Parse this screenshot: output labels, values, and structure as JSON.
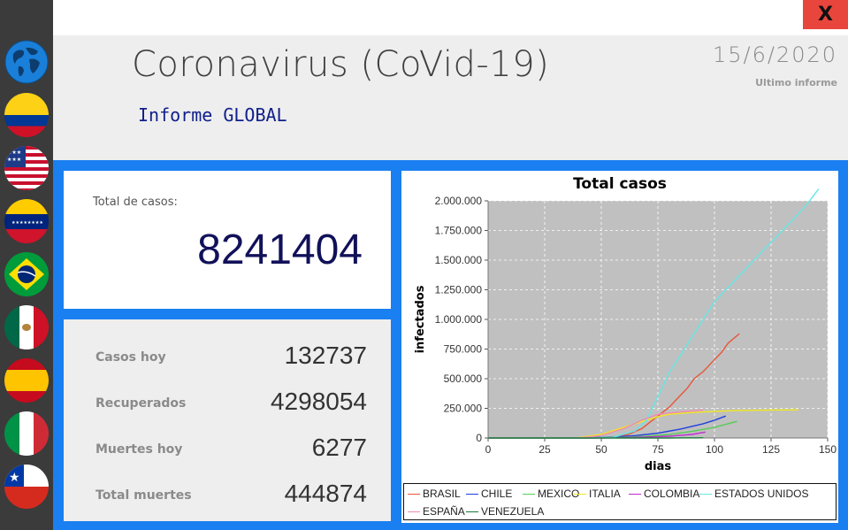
{
  "app": {
    "close_label": "X"
  },
  "sidebar": {
    "items": [
      {
        "name": "globe",
        "label": "Global"
      },
      {
        "name": "colombia"
      },
      {
        "name": "estados-unidos"
      },
      {
        "name": "venezuela"
      },
      {
        "name": "brasil"
      },
      {
        "name": "mexico"
      },
      {
        "name": "espana"
      },
      {
        "name": "italia"
      },
      {
        "name": "chile"
      }
    ]
  },
  "header": {
    "title": "Coronavirus (CoVid-19)",
    "subtitle": "Informe GLOBAL",
    "date": "15/6/2020",
    "last_report_label": "Ultimo informe"
  },
  "summary": {
    "total_label": "Total de casos:",
    "total_value": "8241404"
  },
  "stats": [
    {
      "label": "Casos hoy",
      "value": "132737"
    },
    {
      "label": "Recuperados",
      "value": "4298054"
    },
    {
      "label": "Muertes hoy",
      "value": "6277"
    },
    {
      "label": "Total muertes",
      "value": "444874"
    }
  ],
  "chart_data": {
    "type": "line",
    "title": "Total casos",
    "xlabel": "dias",
    "ylabel": "infectados",
    "xlim": [
      0,
      150
    ],
    "ylim": [
      0,
      2000000
    ],
    "x_ticks": [
      "0",
      "25",
      "50",
      "75",
      "100",
      "125",
      "150"
    ],
    "y_ticks": [
      "0",
      "250.000",
      "500.000",
      "750.000",
      "1.000.000",
      "1.250.000",
      "1.500.000",
      "1.750.000",
      "2.000.000"
    ],
    "grid": true,
    "legend_position": "bottom",
    "series": [
      {
        "name": "BRASIL",
        "color": "#e8553a",
        "points": [
          [
            0,
            0
          ],
          [
            40,
            500
          ],
          [
            55,
            8000
          ],
          [
            62,
            30000
          ],
          [
            68,
            80000
          ],
          [
            72,
            140000
          ],
          [
            76,
            200000
          ],
          [
            80,
            260000
          ],
          [
            84,
            340000
          ],
          [
            88,
            420000
          ],
          [
            91,
            500000
          ],
          [
            95,
            560000
          ],
          [
            99,
            640000
          ],
          [
            103,
            720000
          ],
          [
            106,
            800000
          ],
          [
            111,
            880000
          ]
        ]
      },
      {
        "name": "CHILE",
        "color": "#1f3fdc",
        "points": [
          [
            0,
            0
          ],
          [
            40,
            200
          ],
          [
            55,
            8000
          ],
          [
            65,
            20000
          ],
          [
            75,
            40000
          ],
          [
            85,
            75000
          ],
          [
            95,
            120000
          ],
          [
            100,
            150000
          ],
          [
            105,
            185000
          ]
        ]
      },
      {
        "name": "MEXICO",
        "color": "#55cc55",
        "points": [
          [
            0,
            0
          ],
          [
            45,
            300
          ],
          [
            60,
            6000
          ],
          [
            70,
            15000
          ],
          [
            80,
            30000
          ],
          [
            90,
            55000
          ],
          [
            100,
            90000
          ],
          [
            110,
            140000
          ]
        ]
      },
      {
        "name": "ITALIA",
        "color": "#f0e81c",
        "points": [
          [
            0,
            0
          ],
          [
            40,
            3000
          ],
          [
            50,
            30000
          ],
          [
            60,
            90000
          ],
          [
            65,
            120000
          ],
          [
            70,
            150000
          ],
          [
            75,
            180000
          ],
          [
            80,
            200000
          ],
          [
            90,
            215000
          ],
          [
            100,
            225000
          ],
          [
            110,
            232000
          ],
          [
            125,
            236000
          ],
          [
            137,
            237000
          ]
        ]
      },
      {
        "name": "COLOMBIA",
        "color": "#c02cd0",
        "points": [
          [
            0,
            0
          ],
          [
            50,
            200
          ],
          [
            60,
            3000
          ],
          [
            70,
            8000
          ],
          [
            80,
            15000
          ],
          [
            90,
            30000
          ],
          [
            96,
            50000
          ]
        ]
      },
      {
        "name": "ESTADOS UNIDOS",
        "color": "#66e6e6",
        "points": [
          [
            0,
            0
          ],
          [
            40,
            100
          ],
          [
            55,
            5000
          ],
          [
            65,
            60000
          ],
          [
            70,
            150000
          ],
          [
            75,
            350000
          ],
          [
            80,
            550000
          ],
          [
            85,
            700000
          ],
          [
            90,
            850000
          ],
          [
            95,
            1000000
          ],
          [
            100,
            1150000
          ],
          [
            110,
            1350000
          ],
          [
            120,
            1550000
          ],
          [
            130,
            1750000
          ],
          [
            140,
            1950000
          ],
          [
            146,
            2100000
          ]
        ]
      },
      {
        "name": "ESPAÑA",
        "color": "#f08bb4",
        "points": [
          [
            0,
            0
          ],
          [
            40,
            1000
          ],
          [
            50,
            20000
          ],
          [
            60,
            80000
          ],
          [
            68,
            150000
          ],
          [
            75,
            200000
          ],
          [
            85,
            220000
          ],
          [
            95,
            235000
          ]
        ]
      },
      {
        "name": "VENEZUELA",
        "color": "#1a7a3a",
        "points": [
          [
            0,
            0
          ],
          [
            60,
            0
          ],
          [
            80,
            300
          ],
          [
            95,
            1500
          ]
        ]
      }
    ]
  }
}
